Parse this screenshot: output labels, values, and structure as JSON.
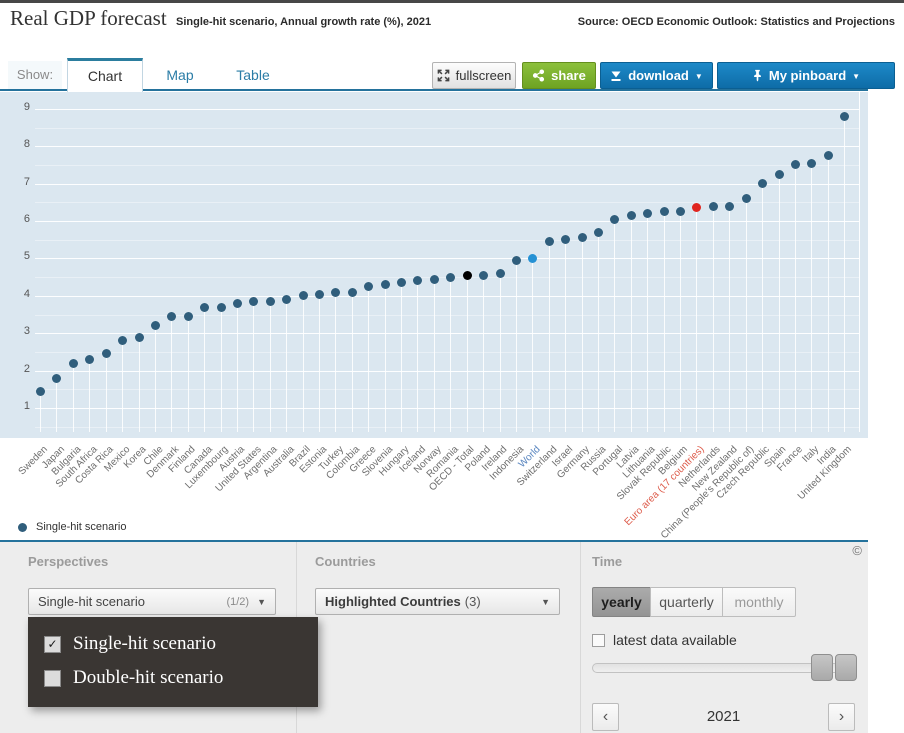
{
  "header": {
    "title": "Real GDP forecast",
    "subtitle": "Single-hit scenario, Annual growth rate (%), 2021",
    "source": "Source: OECD Economic Outlook: Statistics and Projections"
  },
  "toolbar": {
    "show_label": "Show:",
    "tabs": [
      {
        "label": "Chart",
        "active": true
      },
      {
        "label": "Map",
        "active": false
      },
      {
        "label": "Table",
        "active": false
      }
    ],
    "fullscreen_label": "fullscreen",
    "share_label": "share",
    "download_label": "download",
    "pinboard_label": "My pinboard",
    "caret": "▼"
  },
  "chart_data": {
    "type": "scatter",
    "title": "Real GDP forecast",
    "subtitle": "Single-hit scenario, Annual growth rate (%), 2021",
    "series_name": "Single-hit scenario",
    "yticks": [
      1,
      2,
      3,
      4,
      5,
      6,
      7,
      8,
      9
    ],
    "ylim": [
      0.2,
      9.45
    ],
    "grid": true,
    "legend_position": "bottom-left",
    "default_color": "#305e7c",
    "categories": [
      "Sweden",
      "Japan",
      "Bulgaria",
      "South Africa",
      "Costa Rica",
      "Mexico",
      "Korea",
      "Chile",
      "Denmark",
      "Finland",
      "Canada",
      "Luxembourg",
      "Austria",
      "United States",
      "Argentina",
      "Australia",
      "Brazil",
      "Estonia",
      "Turkey",
      "Colombia",
      "Greece",
      "Slovenia",
      "Hungary",
      "Iceland",
      "Norway",
      "Romania",
      "OECD - Total",
      "Poland",
      "Ireland",
      "Indonesia",
      "World",
      "Switzerland",
      "Israel",
      "Germany",
      "Russia",
      "Portugal",
      "Latvia",
      "Lithuania",
      "Slovak Republic",
      "Belgium",
      "Euro area (17 countries)",
      "Netherlands",
      "New Zealand",
      "China (People's Republic of)",
      "Czech Republic",
      "Spain",
      "France",
      "Italy",
      "India",
      "United Kingdom"
    ],
    "values": [
      1.45,
      1.8,
      2.2,
      2.3,
      2.45,
      2.8,
      2.9,
      3.2,
      3.45,
      3.45,
      3.7,
      3.7,
      3.8,
      3.85,
      3.85,
      3.9,
      4.0,
      4.05,
      4.1,
      4.1,
      4.25,
      4.3,
      4.35,
      4.4,
      4.45,
      4.5,
      4.55,
      4.55,
      4.6,
      4.95,
      5.0,
      5.45,
      5.5,
      5.55,
      5.7,
      6.05,
      6.15,
      6.2,
      6.25,
      6.25,
      6.35,
      6.4,
      6.4,
      6.6,
      7.0,
      7.25,
      7.5,
      7.55,
      7.75,
      8.8
    ],
    "point_colors": {
      "OECD - Total": "#000000",
      "World": "#2591d4",
      "Euro area (17 countries)": "#e0251f"
    },
    "label_colors": {
      "World": "#5b87c0",
      "Euro area (17 countries)": "#dd5a49"
    }
  },
  "legend": {
    "marker_color": "#305e7c",
    "label": "Single-hit scenario"
  },
  "controls": {
    "perspectives": {
      "header": "Perspectives",
      "selected": "Single-hit scenario",
      "counter": "(1/2)",
      "check_glyph": "✓",
      "options": [
        {
          "label": "Single-hit scenario",
          "checked": true
        },
        {
          "label": "Double-hit scenario",
          "checked": false
        }
      ]
    },
    "countries": {
      "header": "Countries",
      "selected": "Highlighted Countries",
      "counter": "(3)"
    },
    "time": {
      "header": "Time",
      "copyright": "©",
      "modes": [
        {
          "label": "yearly",
          "active": true
        },
        {
          "label": "quarterly",
          "active": false
        },
        {
          "label": "monthly",
          "active": false
        }
      ],
      "latest_label": "latest data available",
      "latest_checked": false,
      "year": "2021",
      "prev": "‹",
      "next": "›"
    }
  }
}
